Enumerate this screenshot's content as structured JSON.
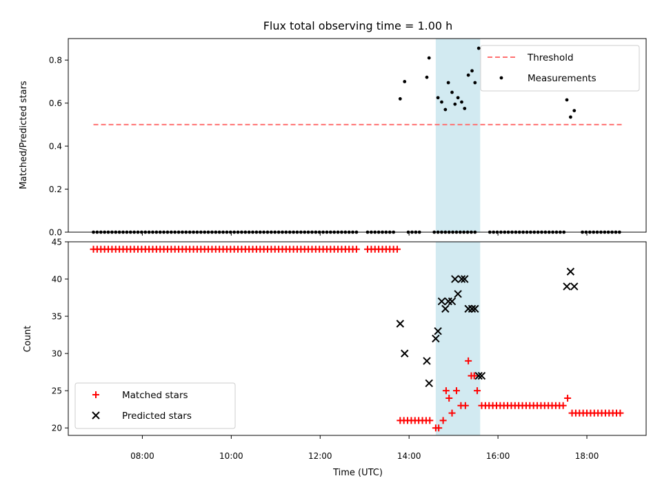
{
  "chart_data": {
    "title": "Flux total observing time = 1.00 h",
    "xlabel": "Time (UTC)",
    "x_ticks": [
      "08:00",
      "10:00",
      "12:00",
      "14:00",
      "16:00",
      "18:00"
    ],
    "highlight_span": [
      "14:36",
      "15:36"
    ],
    "highlight_color": "#add8e6",
    "panels": [
      {
        "type": "scatter",
        "ylabel": "Matched/Predicted stars",
        "ylim": [
          0,
          0.9
        ],
        "y_ticks": [
          0.0,
          0.2,
          0.4,
          0.6,
          0.8
        ],
        "legend_position": "top-right",
        "series": [
          {
            "name": "Threshold",
            "kind": "line",
            "style": "dashed",
            "color": "#ff6f6f",
            "x": [
              "06:54",
              "18:48"
            ],
            "y": [
              0.5,
              0.5
            ]
          },
          {
            "name": "Measurements",
            "kind": "scatter",
            "marker": "dot",
            "color": "#000000",
            "x": [
              "13:48",
              "13:54",
              "14:24",
              "14:27",
              "14:39",
              "14:44",
              "14:49",
              "14:53",
              "14:58",
              "15:02",
              "15:06",
              "15:11",
              "15:15",
              "15:20",
              "15:25",
              "15:29",
              "15:34",
              "17:33",
              "17:38",
              "17:43"
            ],
            "y": [
              0.62,
              0.7,
              0.72,
              0.81,
              0.625,
              0.605,
              0.57,
              0.695,
              0.65,
              0.595,
              0.625,
              0.605,
              0.575,
              0.73,
              0.75,
              0.695,
              0.855,
              0.615,
              0.535,
              0.565
            ]
          },
          {
            "name": "",
            "kind": "scatter",
            "marker": "dot",
            "color": "#000000",
            "x_range": [
              "06:54",
              "18:48"
            ],
            "step_minutes": 5,
            "y": 0,
            "gaps": [
              [
                "12:52",
                "13:02"
              ],
              [
                "13:44",
                "13:56"
              ],
              [
                "14:16",
                "14:32"
              ],
              [
                "15:34",
                "15:44"
              ],
              [
                "17:30",
                "17:50"
              ]
            ]
          }
        ]
      },
      {
        "type": "scatter",
        "ylabel": "Count",
        "ylim": [
          19,
          45
        ],
        "y_ticks": [
          20,
          25,
          30,
          35,
          40,
          45
        ],
        "legend_position": "lower-left",
        "series": [
          {
            "name": "Matched stars",
            "kind": "scatter",
            "marker": "plus",
            "color": "#ff0000",
            "x": [
              "14:36",
              "14:40",
              "14:46",
              "14:50",
              "14:54",
              "14:58",
              "15:04",
              "15:10",
              "15:16",
              "15:20",
              "15:24",
              "15:28",
              "15:32",
              "17:34"
            ],
            "y": [
              20,
              20,
              21,
              25,
              24,
              22,
              25,
              23,
              23,
              29,
              27,
              27,
              25,
              24
            ],
            "runs": [
              {
                "x_range": [
                  "06:54",
                  "13:46"
                ],
                "step_minutes": 5,
                "y": 44,
                "gaps": [
                  [
                    "12:52",
                    "13:02"
                  ]
                ]
              },
              {
                "x_range": [
                  "13:48",
                  "14:32"
                ],
                "step_minutes": 5,
                "y": 21
              },
              {
                "x_range": [
                  "15:38",
                  "17:28"
                ],
                "step_minutes": 5,
                "y": 23
              },
              {
                "x_range": [
                  "17:40",
                  "18:48"
                ],
                "step_minutes": 5,
                "y": 22
              }
            ]
          },
          {
            "name": "Predicted stars",
            "kind": "scatter",
            "marker": "x",
            "color": "#000000",
            "x": [
              "13:48",
              "13:54",
              "14:24",
              "14:27",
              "14:36",
              "14:39",
              "14:44",
              "14:49",
              "14:53",
              "14:58",
              "15:02",
              "15:06",
              "15:11",
              "15:15",
              "15:20",
              "15:25",
              "15:29",
              "15:34",
              "15:38",
              "17:33",
              "17:38",
              "17:43"
            ],
            "y": [
              34,
              30,
              29,
              26,
              32,
              33,
              37,
              36,
              37,
              37,
              40,
              38,
              40,
              40,
              36,
              36,
              36,
              27,
              27,
              39,
              41,
              39
            ]
          }
        ]
      }
    ]
  }
}
